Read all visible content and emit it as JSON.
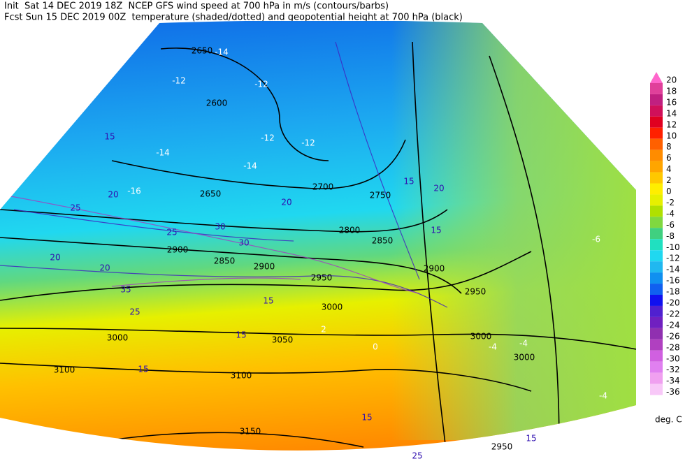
{
  "header": {
    "line1": "Init  Sat 14 DEC 2019 18Z  NCEP GFS wind speed at 700 hPa in m/s (contours/barbs)",
    "line2": "Fcst Sun 15 DEC 2019 00Z  temperature (shaded/dotted) and geopotential height at 700 hPa (black)"
  },
  "colorbar": {
    "labels": [
      20,
      18,
      16,
      14,
      12,
      10,
      8,
      6,
      4,
      2,
      0,
      -2,
      -4,
      -6,
      -8,
      -10,
      -12,
      -14,
      -16,
      -18,
      -20,
      -22,
      -24,
      -26,
      -28,
      -30,
      -32,
      -34,
      -36
    ],
    "colors": [
      "#ff66cc",
      "#e0409a",
      "#c02080",
      "#d0105a",
      "#e00020",
      "#ff2000",
      "#ff6000",
      "#ff8c00",
      "#ffa500",
      "#ffc800",
      "#ffee00",
      "#e6f000",
      "#b0e000",
      "#80d840",
      "#40d080",
      "#20e0c0",
      "#20d8f0",
      "#20b8f0",
      "#1090f0",
      "#1060f0",
      "#1010f0",
      "#5020d0",
      "#7020c0",
      "#9030b0",
      "#b040c0",
      "#d060e0",
      "#e080f0",
      "#f0a0f0",
      "#f8c8f8"
    ],
    "unit": "deg. C"
  },
  "map": {
    "height_labels": [
      "2650",
      "2600",
      "2650",
      "2700",
      "2750",
      "2800",
      "2850",
      "2900",
      "2850",
      "2900",
      "2950",
      "2900",
      "2950",
      "3000",
      "3000",
      "3050",
      "3000",
      "3000",
      "3100",
      "3100",
      "3150",
      "2950"
    ],
    "wind_labels": [
      "15",
      "20",
      "25",
      "25",
      "30",
      "30",
      "35",
      "25",
      "20",
      "20",
      "15",
      "15",
      "15",
      "15",
      "25",
      "15",
      "20",
      "15",
      "15",
      "20"
    ],
    "temp_labels": [
      "-12",
      "-14",
      "-12",
      "-12",
      "-12",
      "-14",
      "-16",
      "-14",
      "-4",
      "-4",
      "2",
      "0",
      "-6",
      "-4"
    ]
  }
}
